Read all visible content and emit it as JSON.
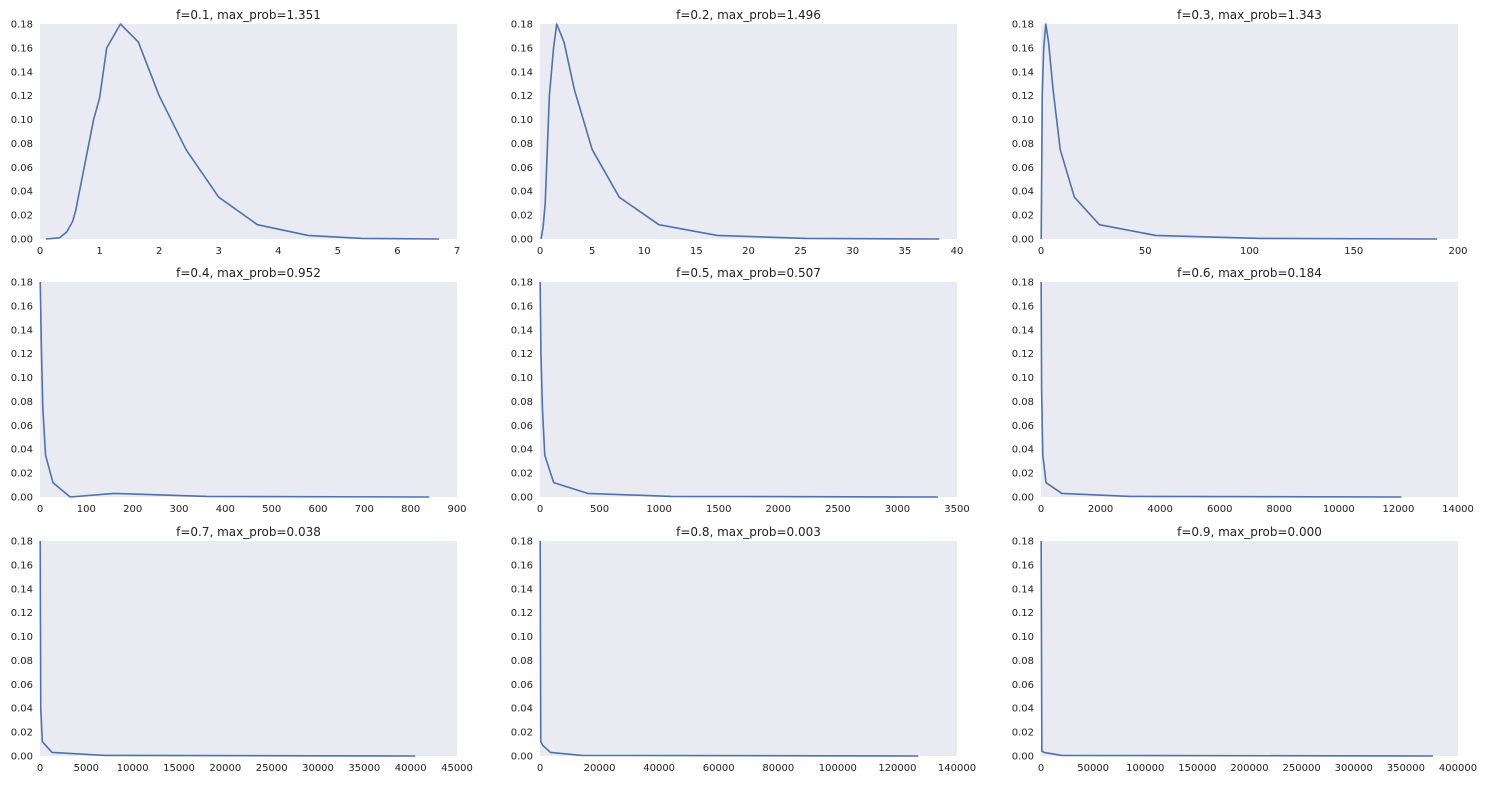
{
  "colors": {
    "background": "#eaeaf2",
    "line": "#4c72b0"
  },
  "chart_data": [
    {
      "type": "line",
      "title": "f=0.1, max_prob=1.351",
      "xlim": [
        0,
        7
      ],
      "ylim": [
        0,
        0.18
      ],
      "grid": false,
      "xticks": [
        0,
        1,
        2,
        3,
        4,
        5,
        6,
        7
      ],
      "yticks": [
        0.0,
        0.02,
        0.04,
        0.06,
        0.08,
        0.1,
        0.12,
        0.14,
        0.16,
        0.18
      ],
      "x": [
        0.1,
        0.33,
        0.45,
        0.55,
        0.6,
        0.9,
        1.0,
        1.12,
        1.35,
        1.65,
        2.0,
        2.45,
        3.0,
        3.65,
        4.5,
        5.4,
        6.7
      ],
      "y": [
        0.0,
        0.001,
        0.006,
        0.015,
        0.024,
        0.1,
        0.118,
        0.16,
        0.18,
        0.165,
        0.12,
        0.075,
        0.035,
        0.012,
        0.003,
        0.0005,
        0.0
      ]
    },
    {
      "type": "line",
      "title": "f=0.2, max_prob=1.496",
      "xlim": [
        0,
        40
      ],
      "ylim": [
        0,
        0.18
      ],
      "grid": false,
      "xticks": [
        0,
        5,
        10,
        15,
        20,
        25,
        30,
        35,
        40
      ],
      "yticks": [
        0.0,
        0.02,
        0.04,
        0.06,
        0.08,
        0.1,
        0.12,
        0.14,
        0.16,
        0.18
      ],
      "x": [
        0.1,
        0.3,
        0.5,
        0.9,
        1.3,
        1.6,
        2.3,
        3.3,
        5.0,
        7.6,
        11.4,
        17.0,
        25.5,
        38.3
      ],
      "y": [
        0.0,
        0.01,
        0.03,
        0.12,
        0.16,
        0.18,
        0.165,
        0.125,
        0.075,
        0.035,
        0.012,
        0.003,
        0.0005,
        0.0
      ]
    },
    {
      "type": "line",
      "title": "f=0.3, max_prob=1.343",
      "xlim": [
        0,
        200
      ],
      "ylim": [
        0,
        0.18
      ],
      "grid": false,
      "xticks": [
        0,
        50,
        100,
        150,
        200
      ],
      "yticks": [
        0.0,
        0.02,
        0.04,
        0.06,
        0.08,
        0.1,
        0.12,
        0.14,
        0.16,
        0.18
      ],
      "x": [
        0.1,
        0.6,
        1.3,
        2.3,
        3.6,
        5.8,
        9.2,
        16.0,
        28.0,
        55.0,
        105.0,
        190.0
      ],
      "y": [
        0.0,
        0.12,
        0.16,
        0.18,
        0.165,
        0.125,
        0.075,
        0.035,
        0.012,
        0.003,
        0.0005,
        0.0
      ]
    },
    {
      "type": "line",
      "title": "f=0.4, max_prob=0.952",
      "xlim": [
        0,
        900
      ],
      "ylim": [
        0,
        0.18
      ],
      "grid": false,
      "xticks": [
        0,
        100,
        200,
        300,
        400,
        500,
        600,
        700,
        800,
        900
      ],
      "yticks": [
        0.0,
        0.02,
        0.04,
        0.06,
        0.08,
        0.1,
        0.12,
        0.14,
        0.16,
        0.18
      ],
      "x": [
        0.5,
        3.0,
        6.0,
        12.0,
        28.0,
        65.0,
        160.0,
        360.0,
        840.0
      ],
      "y": [
        0.18,
        0.125,
        0.075,
        0.035,
        0.012,
        0.0,
        0.003,
        0.0005,
        0.0
      ]
    },
    {
      "type": "line",
      "title": "f=0.5, max_prob=0.507",
      "xlim": [
        0,
        3500
      ],
      "ylim": [
        0,
        0.18
      ],
      "grid": false,
      "xticks": [
        0,
        500,
        1000,
        1500,
        2000,
        2500,
        3000,
        3500
      ],
      "yticks": [
        0.0,
        0.02,
        0.04,
        0.06,
        0.08,
        0.1,
        0.12,
        0.14,
        0.16,
        0.18
      ],
      "x": [
        1,
        8,
        20,
        40,
        115,
        400,
        1100,
        3340
      ],
      "y": [
        0.18,
        0.12,
        0.075,
        0.035,
        0.012,
        0.003,
        0.0005,
        0.0
      ]
    },
    {
      "type": "line",
      "title": "f=0.6, max_prob=0.184",
      "xlim": [
        0,
        14000
      ],
      "ylim": [
        0,
        0.18
      ],
      "grid": false,
      "xticks": [
        0,
        2000,
        4000,
        6000,
        8000,
        10000,
        12000,
        14000
      ],
      "yticks": [
        0.0,
        0.02,
        0.04,
        0.06,
        0.08,
        0.1,
        0.12,
        0.14,
        0.16,
        0.18
      ],
      "x": [
        5,
        20,
        60,
        170,
        700,
        3000,
        12100
      ],
      "y": [
        0.18,
        0.09,
        0.035,
        0.012,
        0.003,
        0.0005,
        0.0
      ]
    },
    {
      "type": "line",
      "title": "f=0.7, max_prob=0.038",
      "xlim": [
        0,
        45000
      ],
      "ylim": [
        0,
        0.18
      ],
      "grid": false,
      "xticks": [
        0,
        5000,
        10000,
        15000,
        20000,
        25000,
        30000,
        35000,
        40000,
        45000
      ],
      "yticks": [
        0.0,
        0.02,
        0.04,
        0.06,
        0.08,
        0.1,
        0.12,
        0.14,
        0.16,
        0.18
      ],
      "x": [
        20,
        80,
        250,
        1300,
        7000,
        40500
      ],
      "y": [
        0.18,
        0.04,
        0.012,
        0.003,
        0.0005,
        0.0
      ]
    },
    {
      "type": "line",
      "title": "f=0.8, max_prob=0.003",
      "xlim": [
        0,
        140000
      ],
      "ylim": [
        0,
        0.18
      ],
      "grid": false,
      "xticks": [
        0,
        20000,
        40000,
        60000,
        80000,
        100000,
        120000,
        140000
      ],
      "yticks": [
        0.0,
        0.02,
        0.04,
        0.06,
        0.08,
        0.1,
        0.12,
        0.14,
        0.16,
        0.18
      ],
      "x": [
        60,
        250,
        900,
        3500,
        14000,
        127000
      ],
      "y": [
        0.18,
        0.012,
        0.009,
        0.003,
        0.0005,
        0.0
      ]
    },
    {
      "type": "line",
      "title": "f=0.9, max_prob=0.000",
      "xlim": [
        0,
        400000
      ],
      "ylim": [
        0,
        0.18
      ],
      "grid": false,
      "xticks": [
        0,
        50000,
        100000,
        150000,
        200000,
        250000,
        300000,
        350000,
        400000
      ],
      "yticks": [
        0.0,
        0.02,
        0.04,
        0.06,
        0.08,
        0.1,
        0.12,
        0.14,
        0.16,
        0.18
      ],
      "x": [
        150,
        800,
        3000,
        20000,
        376000
      ],
      "y": [
        0.18,
        0.004,
        0.003,
        0.0005,
        0.0
      ]
    }
  ]
}
